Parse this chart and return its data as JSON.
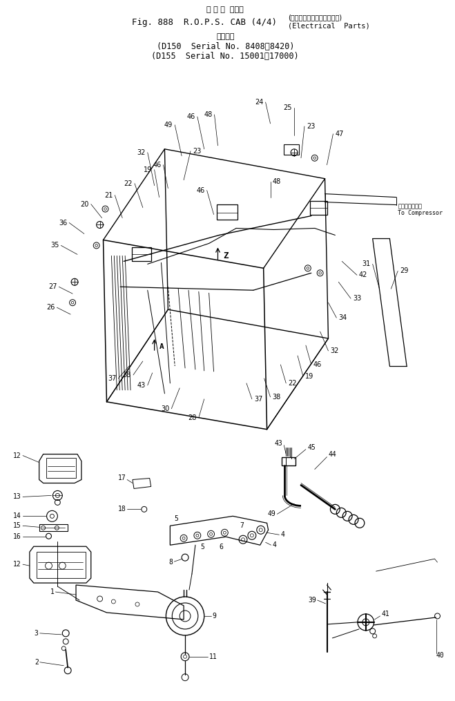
{
  "bg_color": "#ffffff",
  "text_color": "#000000",
  "fig_width": 6.59,
  "fig_height": 10.15,
  "dpi": 100,
  "header": {
    "line1_jp": "ロ プ ス  キャブ",
    "line2": "Fig. 888  R.O.P.S. CAB (4/4)",
    "line2_jp_bracket": "（エレクトリカルパーツ）",
    "line2_en_bracket": "Electrical  Parts",
    "line3_jp": "適用号機",
    "line4": "(D150  Serial No. 8408～8420)",
    "line5": "(D155  Serial No. 15001～17000)"
  }
}
